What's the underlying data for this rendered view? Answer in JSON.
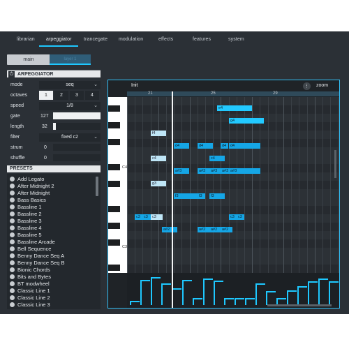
{
  "nav": {
    "tabs": [
      "librarian",
      "arpeggiator",
      "trancegate",
      "modulation",
      "effects",
      "features",
      "system"
    ],
    "active_tab": "arpeggiator"
  },
  "subtabs": {
    "main": "main",
    "layer": "layer 1"
  },
  "arp": {
    "title": "ARPEGGIATOR",
    "mode_label": "mode",
    "mode_value": "seq",
    "octaves_label": "octaves",
    "octaves_options": [
      "1",
      "2",
      "3",
      "4"
    ],
    "octaves_selected": "1",
    "speed_label": "speed",
    "speed_value": "1/8",
    "gate_label": "gate",
    "gate_value": "127",
    "length_label": "length",
    "length_value": "32",
    "filter_label": "filter",
    "filter_value": "fixed c2",
    "strum_label": "strum",
    "strum_value": "0",
    "shuffle_label": "shuffle",
    "shuffle_value": "0",
    "gate_fraction": 1.0,
    "length_fraction": 0.06
  },
  "presets": {
    "title": "PRESETS",
    "items": [
      "Add Legato",
      "After Midnight 2",
      "After Midnight",
      "Bass Basics",
      "Bassline 1",
      "Bassline 2",
      "Bassline 3",
      "Bassline 4",
      "Bassline 5",
      "Bassline Arcade",
      "Bell Sequence",
      "Benny Dance Seq A",
      "Benny Dance Seq B",
      "Bionic Chords",
      "Bits and Bytes",
      "BT modwheel",
      "Classic Line 1",
      "Classic Line 2",
      "Classic Line 3"
    ]
  },
  "editor": {
    "title": "Init",
    "menu_icon": "dots-icon",
    "zoom_label": "zoom",
    "ruler": [
      "21",
      "25",
      "29"
    ],
    "key_labels": [
      "C4",
      "C3"
    ],
    "notes": [
      {
        "label": "e4",
        "step": 28.5,
        "len": 4.5,
        "row": 1,
        "style": "bright"
      },
      {
        "label": "g4",
        "step": 30,
        "len": 4.5,
        "row": 2.5,
        "style": "bright"
      },
      {
        "label": "f4",
        "step": 20,
        "len": 2,
        "row": 4,
        "style": "light"
      },
      {
        "label": "d4",
        "step": 23,
        "len": 2,
        "row": 5.5,
        "style": ""
      },
      {
        "label": "d4",
        "step": 26,
        "len": 2,
        "row": 5.5,
        "style": ""
      },
      {
        "label": "d4",
        "step": 29,
        "len": 1,
        "row": 5.5,
        "style": ""
      },
      {
        "label": "d4",
        "step": 30,
        "len": 4,
        "row": 5.5,
        "style": ""
      },
      {
        "label": "c4",
        "step": 20,
        "len": 2,
        "row": 7,
        "style": "light"
      },
      {
        "label": "c4",
        "step": 27.5,
        "len": 2,
        "row": 7,
        "style": ""
      },
      {
        "label": "a#3",
        "step": 23,
        "len": 2,
        "row": 8.5,
        "style": ""
      },
      {
        "label": "a#3",
        "step": 26,
        "len": 2,
        "row": 8.5,
        "style": ""
      },
      {
        "label": "a#3",
        "step": 27.5,
        "len": 2,
        "row": 8.5,
        "style": ""
      },
      {
        "label": "a#3",
        "step": 29,
        "len": 2,
        "row": 8.5,
        "style": ""
      },
      {
        "label": "a#3",
        "step": 30,
        "len": 4,
        "row": 8.5,
        "style": ""
      },
      {
        "label": "g3",
        "step": 20,
        "len": 2,
        "row": 10,
        "style": "light"
      },
      {
        "label": "f3",
        "step": 23,
        "len": 3,
        "row": 11.5,
        "style": ""
      },
      {
        "label": "f3",
        "step": 26,
        "len": 1,
        "row": 11.5,
        "style": ""
      },
      {
        "label": "f3",
        "step": 27.5,
        "len": 2,
        "row": 11.5,
        "style": ""
      },
      {
        "label": "c3",
        "step": 18,
        "len": 1.5,
        "row": 14,
        "style": ""
      },
      {
        "label": "c3",
        "step": 19,
        "len": 1.5,
        "row": 14,
        "style": ""
      },
      {
        "label": "c3",
        "step": 20,
        "len": 1.5,
        "row": 14,
        "style": "light"
      },
      {
        "label": "c3",
        "step": 30,
        "len": 1.5,
        "row": 14,
        "style": ""
      },
      {
        "label": "c3",
        "step": 31,
        "len": 1,
        "row": 14,
        "style": ""
      },
      {
        "label": "a#2",
        "step": 21.5,
        "len": 2,
        "row": 15.5,
        "style": ""
      },
      {
        "label": "a#2",
        "step": 26,
        "len": 1.5,
        "row": 15.5,
        "style": ""
      },
      {
        "label": "a#2",
        "step": 27.5,
        "len": 1.5,
        "row": 15.5,
        "style": ""
      },
      {
        "label": "a#2",
        "step": 29,
        "len": 1.5,
        "row": 15.5,
        "style": ""
      }
    ],
    "velocities": [
      0.1,
      0.82,
      0.9,
      0.68,
      0.52,
      0.82,
      0.2,
      0.85,
      0.78,
      0.18,
      0.18,
      0.18,
      0.7,
      0.42,
      0.18,
      0.46,
      0.6,
      0.75,
      0.85,
      0.75
    ]
  },
  "colors": {
    "accent": "#1ec8ff",
    "panel": "#2b3036",
    "note": "#15a6e6"
  }
}
